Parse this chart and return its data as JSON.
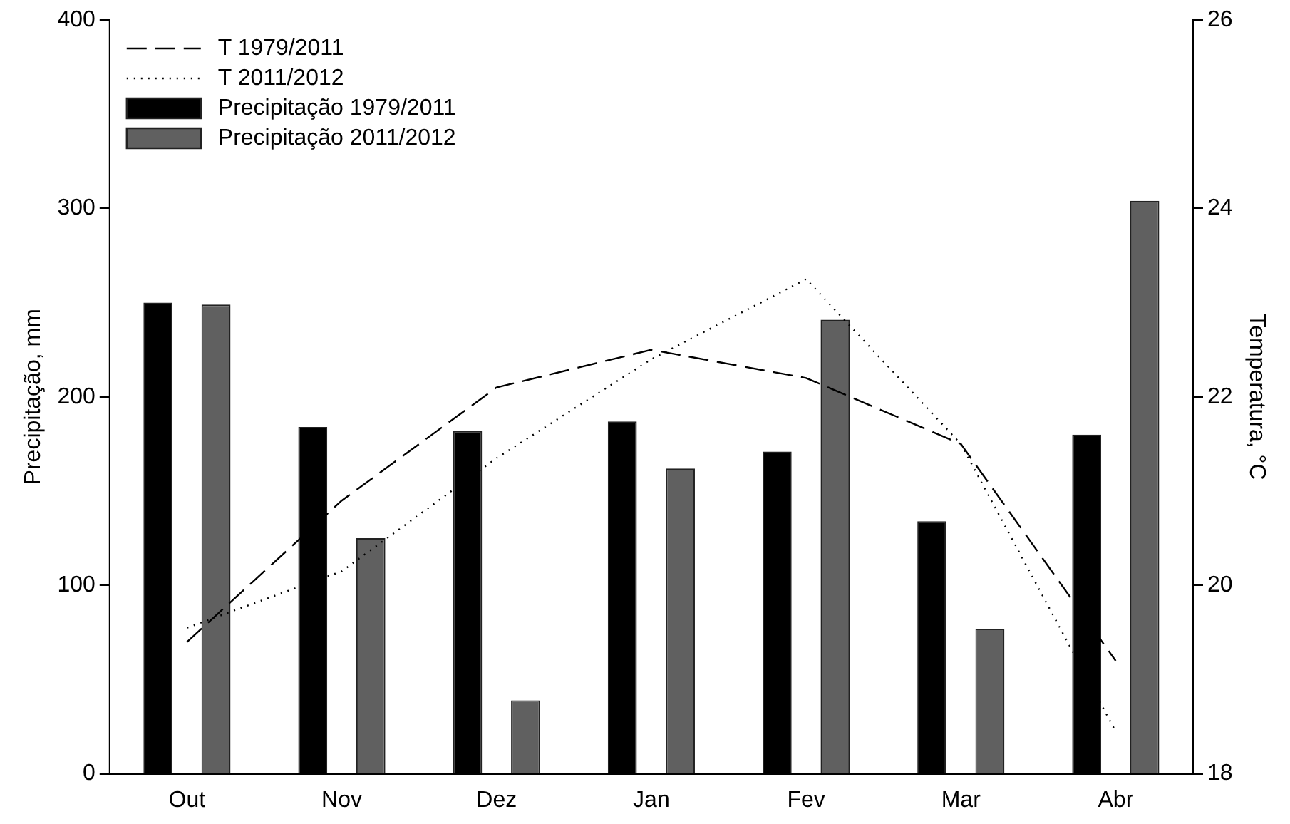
{
  "chart_data": {
    "type": "bar",
    "xlabel": null,
    "ylabel": "Precipitação, mm",
    "y2label": "Temperatura, °C",
    "categories": [
      "Out",
      "Nov",
      "Dez",
      "Jan",
      "Fev",
      "Mar",
      "Abr"
    ],
    "series": [
      {
        "name": "T 1979/2011",
        "type": "line",
        "axis": "y2",
        "color": "#000000",
        "line_style": "dashed",
        "values": [
          19.4,
          20.9,
          22.1,
          22.5,
          22.2,
          21.5,
          19.2
        ]
      },
      {
        "name": "T 2011/2012",
        "type": "line",
        "axis": "y2",
        "color": "#000000",
        "line_style": "dotted",
        "values": [
          19.55,
          20.15,
          21.35,
          22.4,
          23.25,
          21.5,
          18.45
        ]
      },
      {
        "name": "Precipitação 1979/2011",
        "color": "#000000",
        "values": [
          250,
          184,
          182,
          187,
          171,
          134,
          180
        ]
      },
      {
        "name": "Precipitação 2011/2012",
        "color": "#606060",
        "values": [
          249,
          125,
          39,
          162,
          241,
          77,
          304
        ]
      }
    ],
    "ylim": [
      0,
      400
    ],
    "yticks": [
      0,
      100,
      200,
      300,
      400
    ],
    "y2lim": [
      18,
      26
    ],
    "y2ticks": [
      18,
      20,
      22,
      24,
      26
    ],
    "grid": false,
    "legend": "top left",
    "marker": "none"
  }
}
